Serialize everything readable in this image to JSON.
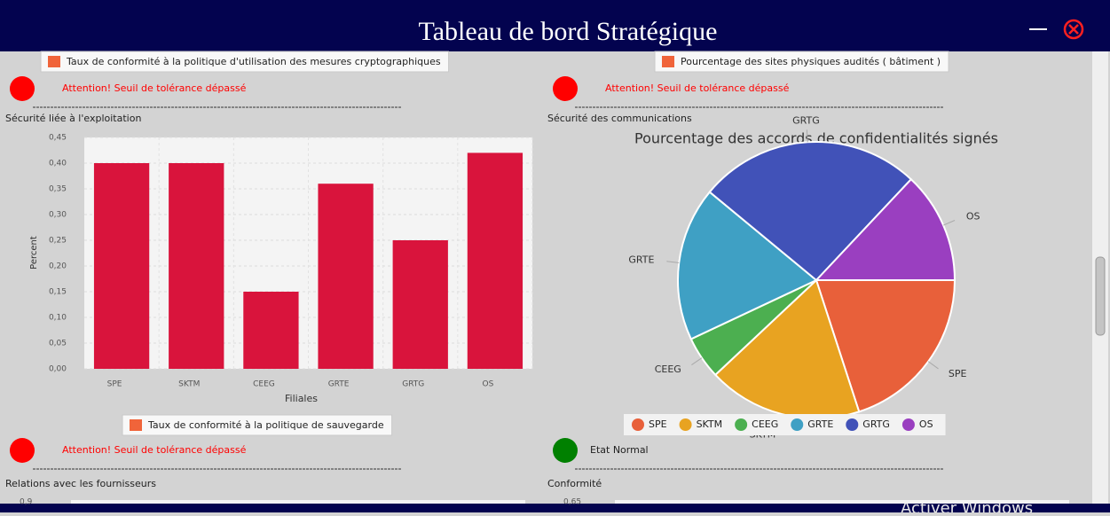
{
  "window": {
    "title": "Tableau de bord Stratégique",
    "watermark": "Activer Windows"
  },
  "panels": [
    {
      "button": "Taux de conformité à la politique d'utilisation des mesures cryptographiques",
      "status": "Attention! Seuil de tolérance dépassé",
      "status_color": "#ff0000",
      "section": "Sécurité liée à l'exploitation"
    },
    {
      "button": "Pourcentage des sites physiques audités ( bâtiment )",
      "status": "Attention! Seuil de tolérance dépassé",
      "status_color": "#ff0000",
      "section": "Sécurité des communications"
    },
    {
      "button": "Taux de conformité à la politique de sauvegarde",
      "status": "Attention! Seuil de tolérance dépassé",
      "status_color": "#ff0000",
      "section": "Relations avec les fournisseurs",
      "axis_top": "0,9"
    },
    {
      "status": "Etat Normal",
      "status_color": "#008000",
      "section": "Conformité",
      "axis_top": "0,65"
    }
  ],
  "chart_data": [
    {
      "type": "bar",
      "xlabel": "Filiales",
      "ylabel": "Percent",
      "color": "#d9143c",
      "categories": [
        "SPE",
        "SKTM",
        "CEEG",
        "GRTE",
        "GRTG",
        "OS"
      ],
      "values": [
        0.4,
        0.4,
        0.15,
        0.36,
        0.25,
        0.42
      ],
      "ylim": [
        0,
        0.45
      ],
      "yticks": [
        {
          "value": 0,
          "label": "0,00"
        },
        {
          "value": 0.05,
          "label": "0,05"
        },
        {
          "value": 0.1,
          "label": "0,10"
        },
        {
          "value": 0.15,
          "label": "0,15"
        },
        {
          "value": 0.2,
          "label": "0,20"
        },
        {
          "value": 0.25,
          "label": "0,25"
        },
        {
          "value": 0.3,
          "label": "0,30"
        },
        {
          "value": 0.35,
          "label": "0,35"
        },
        {
          "value": 0.4,
          "label": "0,40"
        },
        {
          "value": 0.45,
          "label": "0,45"
        }
      ],
      "grid": true
    },
    {
      "type": "pie",
      "title": "Pourcentage des accords de confidentialités signés",
      "categories": [
        "SPE",
        "SKTM",
        "CEEG",
        "GRTE",
        "GRTG",
        "OS"
      ],
      "values": [
        20,
        18,
        5,
        18,
        26,
        13
      ],
      "colors": [
        "#e8603a",
        "#e8a321",
        "#4caf50",
        "#3fa0c4",
        "#4152b8",
        "#9a3fc0"
      ],
      "legend": "bottom"
    }
  ]
}
